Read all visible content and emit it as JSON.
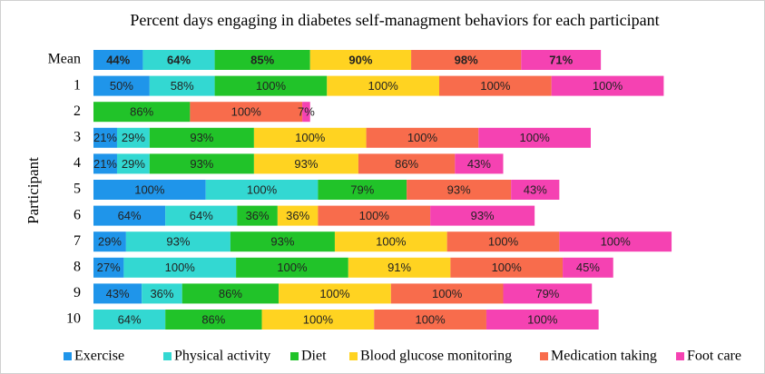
{
  "chart_data": {
    "type": "stacked-bar-horizontal",
    "title": "Percent days engaging in diabetes self-managment behaviors for each participant",
    "y_label": "Participant",
    "categories": [
      "Mean",
      "1",
      "2",
      "3",
      "4",
      "5",
      "6",
      "7",
      "8",
      "9",
      "10"
    ],
    "series": [
      {
        "name": "Exercise",
        "color": "#1f95ea",
        "values": [
          44,
          50,
          null,
          21,
          21,
          100,
          64,
          29,
          27,
          43,
          null
        ],
        "value_labels": [
          "44%",
          "50%",
          null,
          "21%",
          "21%",
          "100%",
          "64%",
          "29%",
          "27%",
          "43%",
          null
        ]
      },
      {
        "name": "Physical activity",
        "color": "#33d8d2",
        "values": [
          64,
          58,
          null,
          29,
          29,
          100,
          64,
          93,
          100,
          36,
          64
        ],
        "value_labels": [
          "64%",
          "58%",
          null,
          "29%",
          "29%",
          "100%",
          "64%",
          "93%",
          "100%",
          "36%",
          "64%"
        ]
      },
      {
        "name": "Diet",
        "color": "#21c329",
        "values": [
          85,
          100,
          86,
          93,
          93,
          79,
          36,
          93,
          100,
          86,
          86
        ],
        "value_labels": [
          "85%",
          "100%",
          "86%",
          "93%",
          "93%",
          "79%",
          "36%",
          "93%",
          "100%",
          "86%",
          "86%"
        ]
      },
      {
        "name": "Blood glucose monitoring",
        "color": "#ffd321",
        "values": [
          90,
          100,
          null,
          100,
          93,
          null,
          36,
          100,
          91,
          100,
          100
        ],
        "value_labels": [
          "90%",
          "100%",
          null,
          "100%",
          "93%",
          null,
          "36%",
          "100%",
          "91%",
          "100%",
          "100%"
        ]
      },
      {
        "name": "Medication taking",
        "color": "#f86c4c",
        "values": [
          98,
          100,
          100,
          100,
          86,
          93,
          100,
          100,
          100,
          100,
          100
        ],
        "value_labels": [
          "98%",
          "100%",
          "100%",
          "100%",
          "86%",
          "93%",
          "100%",
          "100%",
          "100%",
          "100%",
          "100%"
        ]
      },
      {
        "name": "Foot care",
        "color": "#f542b2",
        "values": [
          71,
          100,
          7,
          100,
          43,
          43,
          93,
          100,
          45,
          79,
          100
        ],
        "value_labels": [
          "71%",
          "100%",
          "7%",
          "100%",
          "43%",
          "43%",
          "93%",
          "100%",
          "45%",
          "79%",
          "100%"
        ]
      }
    ]
  }
}
